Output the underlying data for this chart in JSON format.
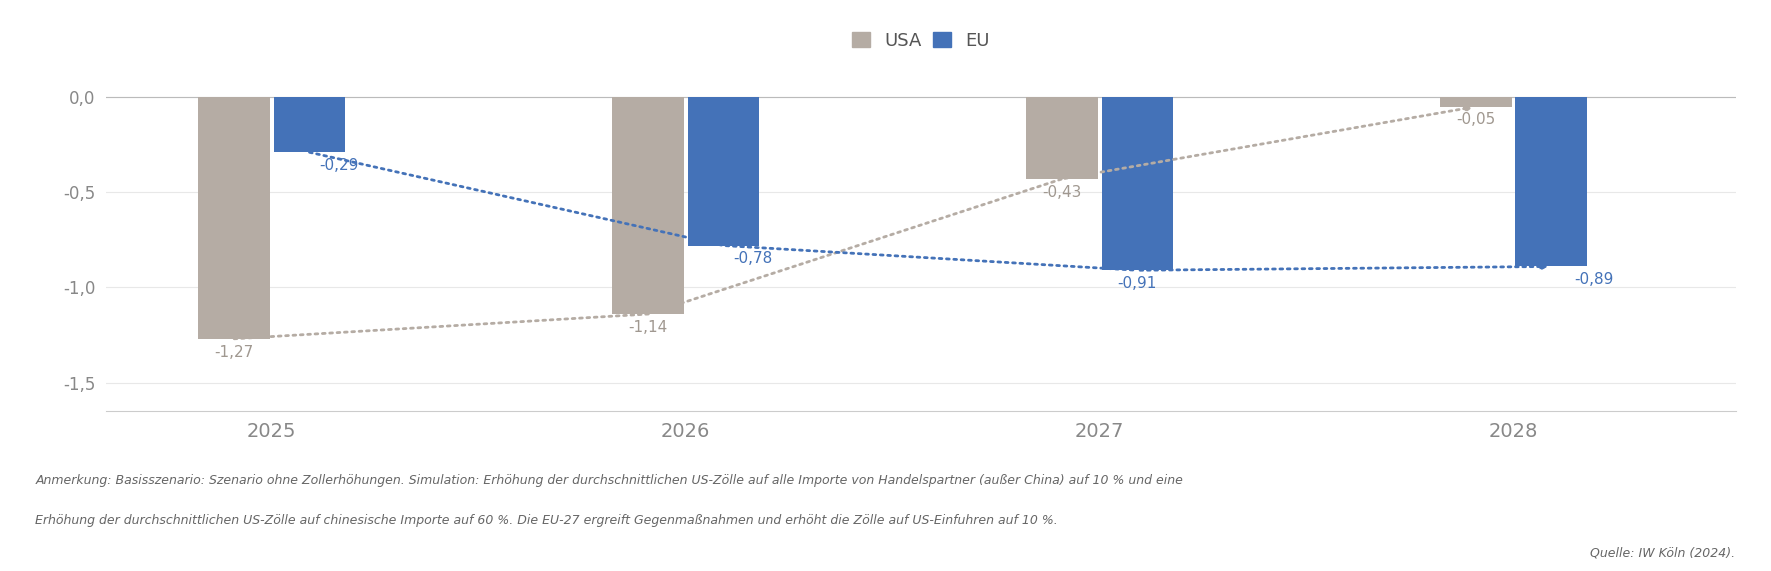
{
  "years": [
    "2025",
    "2026",
    "2027",
    "2028"
  ],
  "usa_values": [
    -1.27,
    -1.14,
    -0.43,
    -0.05
  ],
  "eu_values": [
    -0.29,
    -0.78,
    -0.91,
    -0.89
  ],
  "usa_color": "#b5aca4",
  "eu_color": "#4472b8",
  "usa_text_color": "#a09890",
  "eu_text_color": "#4472b8",
  "ylim": [
    -1.65,
    0.15
  ],
  "yticks": [
    0.0,
    -0.5,
    -1.0,
    -1.5
  ],
  "ytick_labels": [
    "0,0",
    "-0,5",
    "-1,0",
    "-1,5"
  ],
  "legend_usa": "USA",
  "legend_eu": "EU",
  "bar_width": 0.38,
  "bar_gap": 0.02,
  "footnote_line1": "Anmerkung: Basisszenario: Szenario ohne Zollerhöhungen. Simulation: Erhöhung der durchschnittlichen US-Zölle auf alle Importe von Handelspartner (außer China) auf 10 % und eine",
  "footnote_line2": "Erhöhung der durchschnittlichen US-Zölle auf chinesische Importe auf 60 %. Die EU-27 ergreift Gegenmaßnahmen und erhöht die Zölle auf US-Einfuhren auf 10 %.",
  "source": "Quelle: IW Köln (2024).",
  "background_color": "#ffffff",
  "grid_color": "#e8e8e8",
  "tick_color": "#888888",
  "spine_color": "#cccccc"
}
